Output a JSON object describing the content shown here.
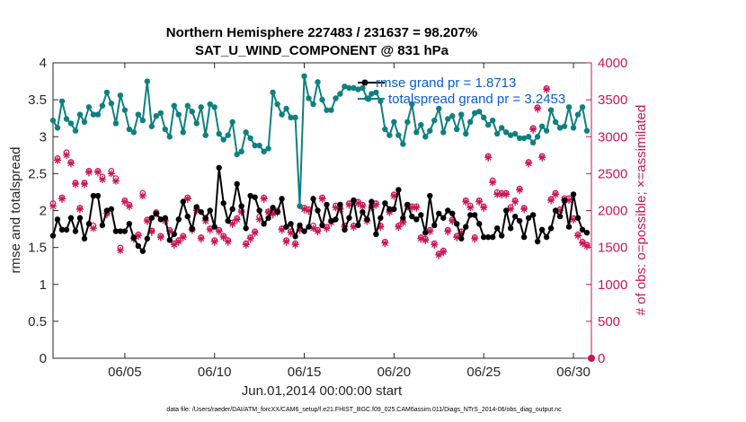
{
  "chart_data": {
    "type": "line",
    "title": "Northern Hemisphere 227483 / 231637 = 98.207%",
    "subtitle": "SAT_U_WIND_COMPONENT @ 831 hPa",
    "xlabel": "Jun.01,2014 00:00:00 start",
    "ylabel": "rmse and totalspread",
    "ylabel_right": "# of obs: o=possible; ×=assimilated",
    "footer": "data file: /Users/raeder/DAI/ATM_forcXX/CAM6_setup/f.e21.FHIST_BGC.f09_025.CAM6assim.011/Diags_NTrS_2014-06/obs_diag_output.nc",
    "xlim": [
      1.0,
      31.0
    ],
    "ylim": [
      0,
      4
    ],
    "ylim_right": [
      0,
      4000
    ],
    "x_ticks": [
      5,
      10,
      15,
      20,
      25,
      30
    ],
    "x_tick_labels": [
      "06/05",
      "06/10",
      "06/15",
      "06/20",
      "06/25",
      "06/30"
    ],
    "y_ticks": [
      0,
      0.5,
      1,
      1.5,
      2,
      2.5,
      3,
      3.5,
      4
    ],
    "y_tick_labels": [
      "0",
      "0.5",
      "1",
      "1.5",
      "2",
      "2.5",
      "3",
      "3.5",
      "4"
    ],
    "y_right_ticks": [
      0,
      500,
      1000,
      1500,
      2000,
      2500,
      3000,
      3500,
      4000
    ],
    "y_right_tick_labels": [
      "0",
      "500",
      "1000",
      "1500",
      "2000",
      "2500",
      "3000",
      "3500",
      "4000"
    ],
    "x": [
      1.0,
      1.25,
      1.5,
      1.75,
      2.0,
      2.25,
      2.5,
      2.75,
      3.0,
      3.25,
      3.5,
      3.75,
      4.0,
      4.25,
      4.5,
      4.75,
      5.0,
      5.25,
      5.5,
      5.75,
      6.0,
      6.25,
      6.5,
      6.75,
      7.0,
      7.25,
      7.5,
      7.75,
      8.0,
      8.25,
      8.5,
      8.75,
      9.0,
      9.25,
      9.5,
      9.75,
      10.0,
      10.25,
      10.5,
      10.75,
      11.0,
      11.25,
      11.5,
      11.75,
      12.0,
      12.25,
      12.5,
      12.75,
      13.0,
      13.25,
      13.5,
      13.75,
      14.0,
      14.25,
      14.5,
      14.75,
      15.0,
      15.25,
      15.5,
      15.75,
      16.0,
      16.25,
      16.5,
      16.75,
      17.0,
      17.25,
      17.5,
      17.75,
      18.0,
      18.25,
      18.5,
      18.75,
      19.0,
      19.25,
      19.5,
      19.75,
      20.0,
      20.25,
      20.5,
      20.75,
      21.0,
      21.25,
      21.5,
      21.75,
      22.0,
      22.25,
      22.5,
      22.75,
      23.0,
      23.25,
      23.5,
      23.75,
      24.0,
      24.25,
      24.5,
      24.75,
      25.0,
      25.25,
      25.5,
      25.75,
      26.0,
      26.25,
      26.5,
      26.75,
      27.0,
      27.25,
      27.5,
      27.75,
      28.0,
      28.25,
      28.5,
      28.75,
      29.0,
      29.25,
      29.5,
      29.75,
      30.0,
      30.25,
      30.5,
      30.75
    ],
    "series": [
      {
        "name": "rmse grand pr = 1.8713",
        "color": "#000000",
        "axis": "left",
        "values": [
          1.66,
          1.88,
          1.74,
          1.74,
          1.9,
          1.72,
          1.9,
          1.62,
          1.82,
          2.2,
          2.2,
          1.8,
          2.0,
          2.02,
          1.72,
          1.72,
          1.72,
          1.82,
          1.63,
          1.52,
          1.45,
          1.62,
          1.9,
          1.96,
          1.88,
          1.9,
          1.6,
          1.68,
          1.88,
          2.12,
          1.92,
          1.75,
          2.05,
          1.98,
          1.9,
          2.0,
          1.78,
          2.58,
          2.1,
          1.86,
          2.02,
          2.36,
          2.06,
          1.76,
          2.2,
          2.18,
          2.0,
          1.82,
          1.9,
          2.04,
          1.98,
          2.16,
          1.78,
          1.82,
          1.65,
          1.8,
          1.72,
          1.78,
          2.16,
          2.0,
          1.8,
          2.08,
          1.86,
          1.88,
          2.08,
          1.74,
          1.9,
          2.14,
          1.8,
          1.98,
          1.88,
          2.12,
          1.68,
          1.9,
          2.1,
          2.02,
          2.02,
          2.28,
          1.9,
          2.08,
          1.92,
          1.88,
          1.94,
          1.7,
          2.2,
          1.8,
          1.96,
          1.9,
          2.0,
          1.96,
          1.82,
          1.62,
          1.78,
          1.94,
          1.94,
          1.82,
          1.64,
          1.64,
          1.64,
          1.76,
          1.66,
          2.0,
          1.76,
          1.92,
          1.86,
          1.64,
          1.9,
          1.94,
          1.58,
          1.74,
          1.64,
          1.76,
          2.0,
          1.92,
          2.14,
          1.78,
          2.22,
          1.9,
          1.74,
          1.7
        ]
      },
      {
        "name": "totalspread grand pr = 3.2453",
        "color": "#0f8080",
        "axis": "left",
        "values": [
          3.22,
          3.12,
          3.48,
          3.24,
          3.18,
          3.08,
          3.3,
          3.2,
          3.4,
          3.3,
          3.3,
          3.42,
          3.6,
          3.45,
          3.18,
          3.56,
          3.36,
          3.1,
          3.06,
          3.3,
          3.22,
          3.75,
          3.14,
          3.28,
          3.32,
          3.1,
          3.0,
          3.42,
          3.3,
          3.06,
          3.42,
          3.34,
          3.18,
          3.4,
          3.02,
          3.44,
          3.4,
          3.04,
          2.96,
          3.02,
          3.2,
          2.76,
          2.8,
          3.06,
          2.98,
          2.88,
          2.88,
          2.8,
          2.84,
          3.6,
          3.44,
          3.3,
          3.38,
          3.26,
          3.26,
          2.06,
          3.82,
          3.52,
          3.44,
          3.74,
          3.5,
          3.36,
          3.36,
          3.52,
          3.58,
          3.68,
          3.66,
          3.66,
          3.64,
          3.66,
          3.52,
          3.58,
          3.6,
          3.48,
          3.1,
          3.02,
          3.2,
          3.02,
          2.9,
          3.2,
          3.44,
          3.06,
          3.16,
          3.0,
          3.08,
          3.22,
          3.38,
          3.06,
          3.24,
          3.28,
          3.1,
          3.3,
          3.04,
          3.2,
          3.32,
          3.34,
          3.26,
          3.16,
          3.22,
          3.04,
          3.12,
          3.06,
          3.02,
          3.04,
          2.98,
          2.98,
          3.0,
          2.92,
          3.0,
          3.14,
          3.08,
          3.36,
          3.2,
          3.12,
          3.14,
          3.4,
          3.12,
          3.3,
          3.4,
          3.08
        ]
      },
      {
        "name": "possible",
        "color": "#cc1457",
        "axis": "right",
        "marker": "o",
        "values": [
          2060,
          2670,
          2140,
          2750,
          2620,
          2340,
          2000,
          2340,
          2500,
          1760,
          2500,
          2420,
          1930,
          2500,
          2400,
          1460,
          2100,
          2040,
          1600,
          1640,
          2200,
          1840,
          1690,
          1940,
          1620,
          1840,
          1700,
          1520,
          1560,
          1620,
          2140,
          1720,
          1980,
          1600,
          1850,
          1720,
          1560,
          1700,
          1620,
          1560,
          1800,
          1860,
          1960,
          1520,
          1600,
          1680,
          1880,
          2140,
          1950,
          1930,
          1960,
          1720,
          1560,
          1680,
          1520,
          1720,
          2000,
          1980,
          1760,
          1700,
          2140,
          1740,
          1820,
          2030,
          2000,
          1760,
          2060,
          1760,
          2080,
          2040,
          1840,
          2030,
          2060,
          1760,
          1540,
          1960,
          2180,
          1760,
          1820,
          2040,
          2020,
          2020,
          1600,
          1580,
          1700,
          1520,
          1380,
          1420,
          1700,
          1840,
          1620,
          1680,
          2100,
          2030,
          1600,
          2100,
          2020,
          2700,
          2370,
          2210,
          2200,
          2200,
          2010,
          2100,
          2260,
          2000,
          2620,
          3080,
          3360,
          2700,
          3620,
          2120,
          2200,
          1980,
          2130,
          2130,
          1860,
          1640,
          1540,
          1500
        ]
      },
      {
        "name": "assimilated",
        "color": "#cc1457",
        "axis": "right",
        "marker": "x",
        "values": [
          2060,
          2680,
          2160,
          2750,
          2640,
          2360,
          2020,
          2360,
          2520,
          1760,
          2520,
          2420,
          1960,
          2500,
          2400,
          1460,
          2120,
          2060,
          1620,
          1660,
          2200,
          1860,
          1720,
          1960,
          1640,
          1860,
          1720,
          1540,
          1580,
          1640,
          2160,
          1740,
          2000,
          1620,
          1860,
          1740,
          1580,
          1720,
          1640,
          1580,
          1820,
          1880,
          1980,
          1540,
          1620,
          1700,
          1880,
          2160,
          1980,
          1960,
          1980,
          1740,
          1580,
          1700,
          1540,
          1740,
          2020,
          2000,
          1760,
          1720,
          2160,
          1760,
          1840,
          2040,
          2020,
          1780,
          2080,
          1780,
          2100,
          2060,
          1860,
          2040,
          2080,
          1780,
          1560,
          1980,
          2200,
          1780,
          1840,
          2060,
          2040,
          2040,
          1620,
          1600,
          1720,
          1540,
          1400,
          1440,
          1720,
          1860,
          1640,
          1700,
          2120,
          2040,
          1620,
          2120,
          2040,
          2720,
          2380,
          2220,
          2220,
          2220,
          2020,
          2120,
          2280,
          2020,
          2640,
          3100,
          3380,
          2720,
          3640,
          2140,
          2220,
          2000,
          2140,
          2140,
          1880,
          1660,
          1560,
          1520
        ]
      }
    ]
  }
}
